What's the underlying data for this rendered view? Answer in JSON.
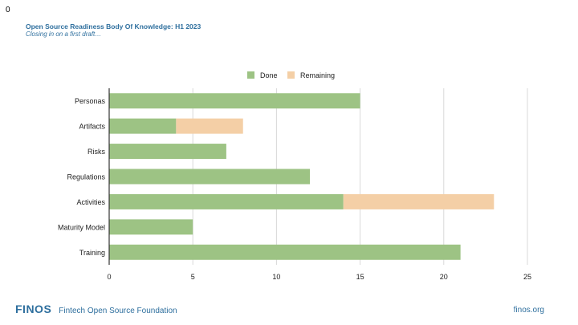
{
  "slide": {
    "number": "0",
    "title": "Open Source Readiness Body Of Knowledge: H1 2023",
    "subtitle": "Closing in on a first draft…"
  },
  "footer": {
    "logo": "FINOS",
    "tagline": "Fintech Open Source Foundation",
    "url": "finos.org"
  },
  "colors": {
    "done": "#9dc384",
    "remaining": "#f4cfa6",
    "grid": "#d9d9d9",
    "axis": "#333333",
    "text": "#222222",
    "brand": "#2e6f9e"
  },
  "chart_data": {
    "type": "bar",
    "orientation": "horizontal",
    "stacked": true,
    "categories": [
      "Personas",
      "Artifacts",
      "Risks",
      "Regulations",
      "Activities",
      "Maturity Model",
      "Training"
    ],
    "series": [
      {
        "name": "Done",
        "values": [
          15,
          4,
          7,
          12,
          14,
          5,
          21
        ]
      },
      {
        "name": "Remaining",
        "values": [
          0,
          4,
          0,
          0,
          9,
          0,
          0
        ]
      }
    ],
    "xlim": [
      0,
      25
    ],
    "xticks": [
      0,
      5,
      10,
      15,
      20,
      25
    ],
    "grid": true,
    "legend": "top-center"
  }
}
